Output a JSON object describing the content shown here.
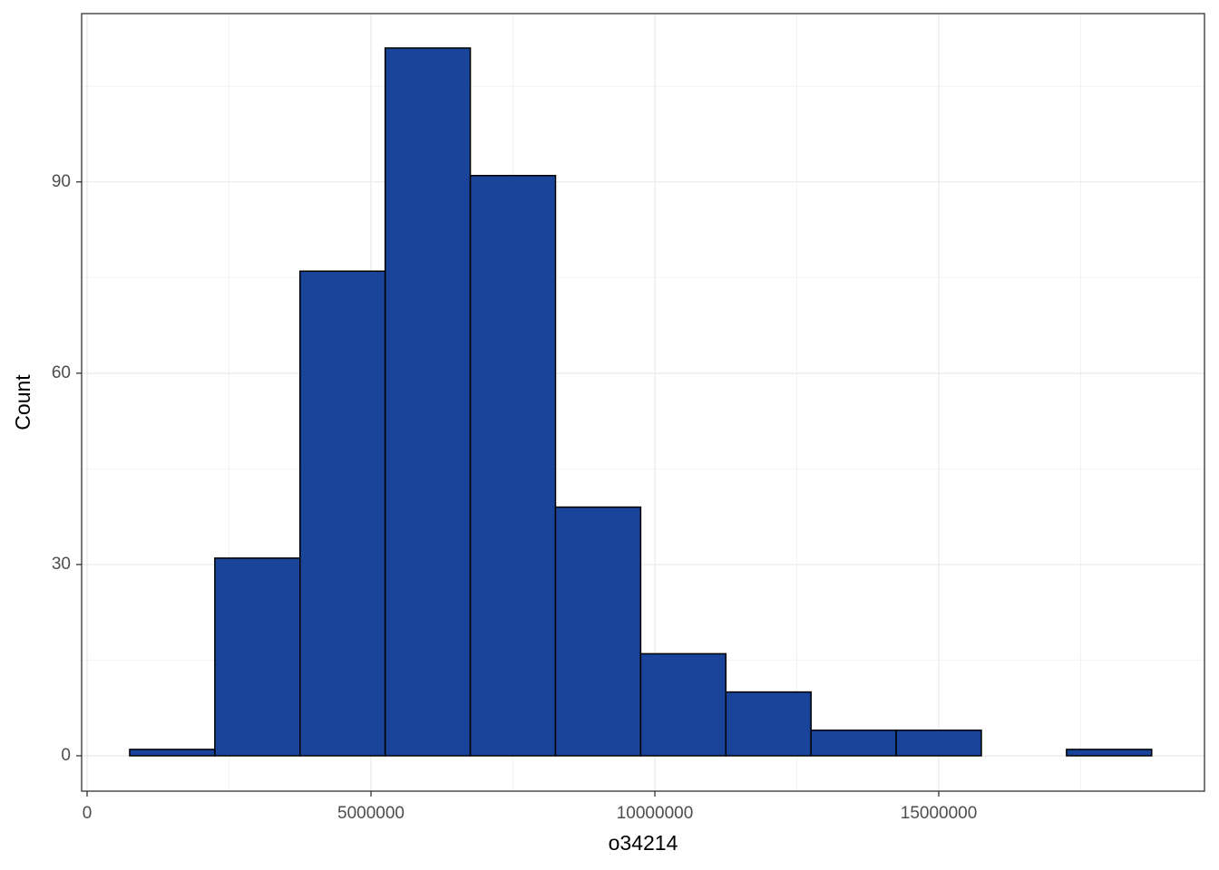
{
  "chart_data": {
    "type": "histogram",
    "x_label": "o34214",
    "y_label": "Count",
    "bins": [
      750000,
      2250000,
      3750000,
      5250000,
      6750000,
      8250000,
      9750000,
      11250000,
      12750000,
      14250000,
      15750000,
      17250000,
      18750000
    ],
    "values": [
      1,
      31,
      76,
      111,
      91,
      39,
      16,
      10,
      4,
      4,
      0,
      1
    ],
    "color": "#1a4499",
    "edgecolor": "#000000",
    "xlim": [
      -96000,
      19680000
    ],
    "ylim": [
      -5.55,
      116.4
    ],
    "xticks": [
      0,
      5000000,
      10000000,
      15000000
    ],
    "yticks": [
      0,
      30,
      60,
      90
    ],
    "xminor": [
      2500000,
      7500000,
      12500000,
      17500000
    ],
    "yminor": [
      15,
      45,
      75,
      105
    ],
    "grid": true
  }
}
